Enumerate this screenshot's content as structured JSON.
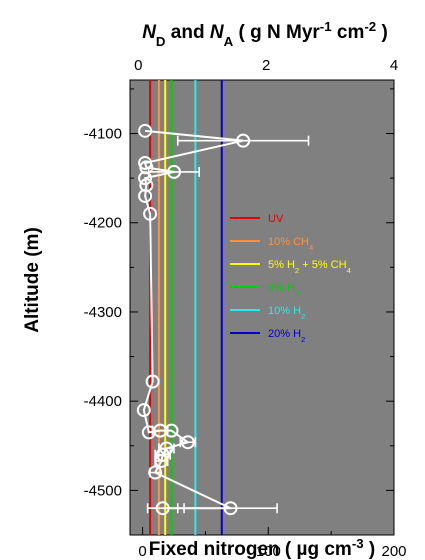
{
  "chart_data": {
    "type": "scatter",
    "top_axis": {
      "title_parts": [
        "N",
        "D",
        " and ",
        "N",
        "A",
        " ( g N Myr",
        "-1",
        " cm",
        "-2",
        " )"
      ],
      "ticks": [
        0,
        2,
        4
      ],
      "range": [
        -0.13,
        4.0
      ],
      "unit": "g N Myr^-1 cm^-2"
    },
    "x_axis": {
      "title_parts": [
        "Fixed nitrogen ( ",
        "µ",
        "g cm",
        "-3",
        " )"
      ],
      "ticks": [
        0,
        100,
        200
      ],
      "range": [
        -10,
        200
      ]
    },
    "y_axis": {
      "title": "Altitude (m)",
      "ticks": [
        -4100,
        -4200,
        -4300,
        -4400,
        -4500
      ],
      "range": [
        -4550,
        -4040
      ]
    },
    "background_color": "#808080",
    "grid": false,
    "legend_position": "right-middle",
    "reference_lines": [
      {
        "label_parts": [
          "UV"
        ],
        "x": 6,
        "color": "#e00000"
      },
      {
        "label_parts": [
          "10% CH",
          "4"
        ],
        "x": 13,
        "color": "#ff9040"
      },
      {
        "label_parts": [
          "5% H",
          "2",
          " + 5% CH",
          "4"
        ],
        "x": 18,
        "color": "#ffff00"
      },
      {
        "label_parts": [
          "0% H",
          "2"
        ],
        "x": 23,
        "color": "#00d000"
      },
      {
        "label_parts": [
          "10% H",
          "2"
        ],
        "x": 42,
        "color": "#30e8e8"
      },
      {
        "label_parts": [
          "20% H",
          "2"
        ],
        "x": 63,
        "color": "#0000d0"
      }
    ],
    "points": [
      {
        "x": 2,
        "y": -4097
      },
      {
        "x": 80,
        "y": -4108,
        "xerr": 52
      },
      {
        "x": 2,
        "y": -4133
      },
      {
        "x": 3,
        "y": -4138
      },
      {
        "x": 25,
        "y": -4143,
        "xerr": 20
      },
      {
        "x": 2,
        "y": -4150
      },
      {
        "x": 3,
        "y": -4158
      },
      {
        "x": 2,
        "y": -4170
      },
      {
        "x": 6,
        "y": -4190
      },
      {
        "x": 8,
        "y": -4378
      },
      {
        "x": 1,
        "y": -4410
      },
      {
        "x": 5,
        "y": -4435
      },
      {
        "x": 14,
        "y": -4433,
        "xerr": 6
      },
      {
        "x": 23,
        "y": -4433
      },
      {
        "x": 36,
        "y": -4446,
        "xerr": 6
      },
      {
        "x": 19,
        "y": -4453,
        "xerr": 6
      },
      {
        "x": 16,
        "y": -4460,
        "xerr": 6
      },
      {
        "x": 15,
        "y": -4467,
        "xerr": 5
      },
      {
        "x": 10,
        "y": -4480,
        "xerr": 4
      },
      {
        "x": 70,
        "y": -4520,
        "xerr": 37
      },
      {
        "x": 16,
        "y": -4520,
        "xerr": 12
      }
    ],
    "connected_order": [
      0,
      1,
      2,
      3,
      4,
      5,
      6,
      7,
      8,
      9,
      10,
      11,
      12,
      13,
      14,
      15,
      16,
      17,
      18,
      19,
      20
    ]
  }
}
